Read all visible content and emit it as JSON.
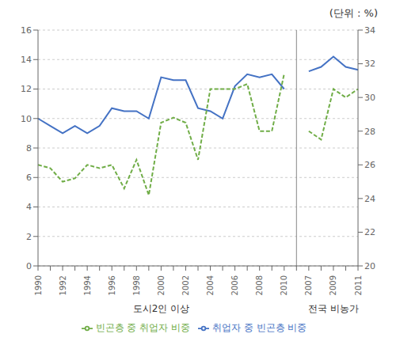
{
  "chart_data": {
    "type": "line",
    "title": "(단위 : %)",
    "annotations": [
      {
        "text": "도시2인 이상"
      },
      {
        "text": "전국 비농가"
      }
    ],
    "categories": [
      "1990",
      null,
      "1992",
      null,
      "1994",
      null,
      "1996",
      null,
      "1998",
      null,
      "2000",
      null,
      "2002",
      null,
      "2004",
      null,
      "2006",
      null,
      "2008",
      null,
      "2010",
      null,
      "2007",
      null,
      "2009",
      null,
      "2011"
    ],
    "series": [
      {
        "name": "취업자 중 빈곤층 비중",
        "color": "#4472C4",
        "line_style": "solid",
        "values": [
          10.0,
          9.5,
          9.0,
          9.5,
          9.0,
          9.5,
          10.7,
          10.5,
          10.5,
          10.0,
          12.8,
          12.6,
          12.6,
          10.7,
          10.5,
          10.0,
          12.2,
          13.0,
          12.8,
          13.0,
          12.0,
          null,
          13.2,
          13.5,
          14.2,
          13.5,
          13.3
        ]
      },
      {
        "name": "빈곤층 중 취업자 비중",
        "color": "#70AD47",
        "line_style": "dashed",
        "axis": "y2",
        "values": [
          26.0,
          25.8,
          25.0,
          25.2,
          26.0,
          25.8,
          26.0,
          24.6,
          26.3,
          24.2,
          28.5,
          28.8,
          28.5,
          26.3,
          30.5,
          30.5,
          30.5,
          30.8,
          28.0,
          28.0,
          31.4,
          null,
          28.0,
          27.5,
          30.5,
          30.0,
          30.5
        ]
      }
    ],
    "ylim": [
      0,
      16
    ],
    "yticks": [
      0,
      2,
      4,
      6,
      8,
      10,
      12,
      14,
      16
    ],
    "y2lim": [
      20,
      34
    ],
    "y2ticks": [
      20,
      22,
      24,
      26,
      28,
      30,
      32,
      34
    ],
    "grid": true,
    "legend": "bottom"
  }
}
